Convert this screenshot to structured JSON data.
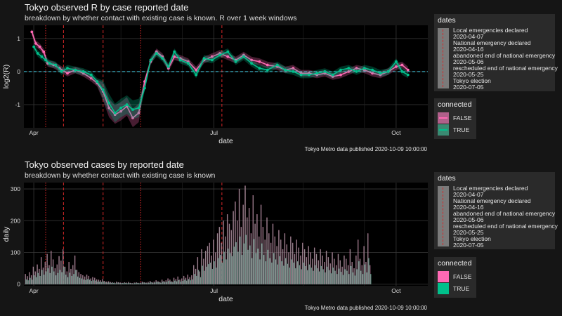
{
  "colors": {
    "false": "#ff69b4",
    "true": "#00c08b",
    "event_line": "#d62728",
    "hline": "#3fc0d6",
    "panel_bg": "#000000",
    "page_bg": "#151515"
  },
  "top": {
    "title": "Tokyo observed R by case reported date",
    "subtitle": "breakdown by whether contact with existing case is known. R over 1 week windows",
    "xlabel": "date",
    "ylabel": "log2(R)",
    "caption": "Tokyo Metro data published 2020-10-09 10:00:00"
  },
  "bottom": {
    "title": "Tokyo observed cases by reported date",
    "subtitle": "breakdown by whether contact with existing case is known",
    "xlabel": "date",
    "ylabel": "daily",
    "caption": "Tokyo Metro data published 2020-10-09 10:00:00"
  },
  "legend_dates": {
    "title": "dates",
    "entries": [
      "Local emergencies declared",
      "2020-04-07",
      "National emergency declared",
      "2020-04-16",
      "abandoned end of national emergency",
      "2020-05-06",
      "rescheduled end of national emergency",
      "2020-05-25",
      "Tokyo election",
      "2020-07-05"
    ]
  },
  "legend_connected": {
    "title": "connected",
    "items": [
      "FALSE",
      "TRUE"
    ]
  },
  "chart_data": [
    {
      "type": "line",
      "title": "Tokyo observed R by case reported date",
      "subtitle": "breakdown by whether contact with existing case is known. R over 1 week windows",
      "xlabel": "date",
      "ylabel": "log2(R)",
      "x_ticks": [
        "Apr",
        "Jul",
        "Oct"
      ],
      "y_ticks": [
        -1,
        0,
        1
      ],
      "ylim": [
        -1.7,
        1.4
      ],
      "x_range": [
        "2020-03-27",
        "2020-10-17"
      ],
      "hline": 0,
      "event_dates": [
        "2020-04-07",
        "2020-04-16",
        "2020-05-06",
        "2020-05-25",
        "2020-07-05"
      ],
      "series": [
        {
          "name": "FALSE",
          "points": [
            [
              "2020-03-31",
              1.2
            ],
            [
              "2020-04-02",
              0.85
            ],
            [
              "2020-04-04",
              0.75
            ],
            [
              "2020-04-06",
              0.6
            ],
            [
              "2020-04-08",
              0.25
            ],
            [
              "2020-04-11",
              0.2
            ],
            [
              "2020-04-14",
              0.1
            ],
            [
              "2020-04-18",
              -0.05
            ],
            [
              "2020-04-22",
              0.05
            ],
            [
              "2020-04-26",
              -0.05
            ],
            [
              "2020-04-30",
              -0.2
            ],
            [
              "2020-05-03",
              -0.35
            ],
            [
              "2020-05-06",
              -0.6
            ],
            [
              "2020-05-09",
              -1.1
            ],
            [
              "2020-05-12",
              -1.3
            ],
            [
              "2020-05-15",
              -1.2
            ],
            [
              "2020-05-18",
              -1.05
            ],
            [
              "2020-05-21",
              -1.4
            ],
            [
              "2020-05-24",
              -1.25
            ],
            [
              "2020-05-27",
              -0.3
            ],
            [
              "2020-05-30",
              0.3
            ],
            [
              "2020-06-02",
              0.6
            ],
            [
              "2020-06-05",
              0.45
            ],
            [
              "2020-06-08",
              0.1
            ],
            [
              "2020-06-11",
              0.45
            ],
            [
              "2020-06-14",
              0.4
            ],
            [
              "2020-06-18",
              0.3
            ],
            [
              "2020-06-22",
              0.05
            ],
            [
              "2020-06-26",
              0.35
            ],
            [
              "2020-06-30",
              0.45
            ],
            [
              "2020-07-04",
              0.55
            ],
            [
              "2020-07-08",
              0.45
            ],
            [
              "2020-07-12",
              0.35
            ],
            [
              "2020-07-16",
              0.5
            ],
            [
              "2020-07-20",
              0.35
            ],
            [
              "2020-07-24",
              0.3
            ],
            [
              "2020-07-28",
              0.2
            ],
            [
              "2020-08-02",
              0.15
            ],
            [
              "2020-08-06",
              0.05
            ],
            [
              "2020-08-10",
              0.1
            ],
            [
              "2020-08-14",
              -0.05
            ],
            [
              "2020-08-18",
              -0.05
            ],
            [
              "2020-08-22",
              -0.1
            ],
            [
              "2020-08-26",
              -0.05
            ],
            [
              "2020-08-30",
              -0.15
            ],
            [
              "2020-09-03",
              -0.1
            ],
            [
              "2020-09-07",
              0.0
            ],
            [
              "2020-09-11",
              0.1
            ],
            [
              "2020-09-15",
              0.05
            ],
            [
              "2020-09-19",
              -0.05
            ],
            [
              "2020-09-23",
              -0.1
            ],
            [
              "2020-09-27",
              0.0
            ],
            [
              "2020-10-01",
              0.15
            ],
            [
              "2020-10-04",
              0.2
            ],
            [
              "2020-10-07",
              0.05
            ]
          ]
        },
        {
          "name": "TRUE",
          "points": [
            [
              "2020-04-01",
              0.75
            ],
            [
              "2020-04-03",
              0.55
            ],
            [
              "2020-04-05",
              0.45
            ],
            [
              "2020-04-07",
              0.35
            ],
            [
              "2020-04-09",
              0.25
            ],
            [
              "2020-04-12",
              0.2
            ],
            [
              "2020-04-15",
              0.0
            ],
            [
              "2020-04-18",
              0.1
            ],
            [
              "2020-04-22",
              0.05
            ],
            [
              "2020-04-26",
              0.0
            ],
            [
              "2020-04-30",
              -0.1
            ],
            [
              "2020-05-03",
              -0.3
            ],
            [
              "2020-05-06",
              -0.55
            ],
            [
              "2020-05-09",
              -0.95
            ],
            [
              "2020-05-12",
              -1.25
            ],
            [
              "2020-05-15",
              -1.1
            ],
            [
              "2020-05-18",
              -1.0
            ],
            [
              "2020-05-21",
              -1.15
            ],
            [
              "2020-05-24",
              -1.1
            ],
            [
              "2020-05-27",
              -0.5
            ],
            [
              "2020-05-30",
              0.35
            ],
            [
              "2020-06-02",
              0.55
            ],
            [
              "2020-06-05",
              0.4
            ],
            [
              "2020-06-08",
              0.15
            ],
            [
              "2020-06-11",
              0.6
            ],
            [
              "2020-06-14",
              0.35
            ],
            [
              "2020-06-18",
              0.25
            ],
            [
              "2020-06-22",
              -0.1
            ],
            [
              "2020-06-26",
              0.4
            ],
            [
              "2020-06-30",
              0.35
            ],
            [
              "2020-07-04",
              0.5
            ],
            [
              "2020-07-08",
              0.6
            ],
            [
              "2020-07-12",
              0.3
            ],
            [
              "2020-07-16",
              0.45
            ],
            [
              "2020-07-20",
              0.25
            ],
            [
              "2020-07-24",
              0.1
            ],
            [
              "2020-07-28",
              0.05
            ],
            [
              "2020-08-02",
              0.2
            ],
            [
              "2020-08-06",
              0.05
            ],
            [
              "2020-08-10",
              0.0
            ],
            [
              "2020-08-14",
              -0.1
            ],
            [
              "2020-08-18",
              -0.1
            ],
            [
              "2020-08-22",
              -0.05
            ],
            [
              "2020-08-26",
              0.0
            ],
            [
              "2020-08-30",
              -0.1
            ],
            [
              "2020-09-03",
              0.05
            ],
            [
              "2020-09-07",
              0.1
            ],
            [
              "2020-09-11",
              0.0
            ],
            [
              "2020-09-15",
              0.1
            ],
            [
              "2020-09-19",
              0.05
            ],
            [
              "2020-09-23",
              -0.05
            ],
            [
              "2020-09-27",
              0.0
            ],
            [
              "2020-10-01",
              0.3
            ],
            [
              "2020-10-04",
              0.0
            ],
            [
              "2020-10-07",
              -0.1
            ]
          ]
        }
      ]
    },
    {
      "type": "bar",
      "title": "Tokyo observed cases by reported date",
      "subtitle": "breakdown by whether contact with existing case is known",
      "xlabel": "date",
      "ylabel": "daily",
      "x_ticks": [
        "Apr",
        "Jul",
        "Oct"
      ],
      "y_ticks": [
        0,
        100,
        200,
        300
      ],
      "ylim": [
        -5,
        320
      ],
      "x_range": [
        "2020-03-27",
        "2020-10-17"
      ],
      "event_dates": [
        "2020-04-07",
        "2020-04-16",
        "2020-05-06",
        "2020-05-25",
        "2020-07-05"
      ],
      "start_date": "2020-03-28",
      "series": [
        {
          "name": "FALSE",
          "values": [
            32,
            25,
            38,
            28,
            55,
            40,
            62,
            48,
            85,
            52,
            70,
            95,
            60,
            105,
            78,
            50,
            62,
            88,
            74,
            110,
            55,
            40,
            70,
            48,
            60,
            90,
            45,
            38,
            32,
            28,
            24,
            30,
            26,
            18,
            22,
            20,
            15,
            14,
            12,
            16,
            10,
            8,
            9,
            7,
            6,
            5,
            8,
            6,
            5,
            4,
            6,
            5,
            7,
            4,
            3,
            5,
            6,
            4,
            5,
            8,
            6,
            5,
            7,
            10,
            6,
            8,
            12,
            9,
            7,
            14,
            10,
            12,
            18,
            14,
            9,
            20,
            16,
            24,
            14,
            18,
            26,
            20,
            30,
            22,
            28,
            60,
            48,
            85,
            40,
            110,
            80,
            105,
            120,
            130,
            90,
            140,
            100,
            160,
            180,
            130,
            200,
            150,
            220,
            190,
            170,
            230,
            260,
            200,
            300,
            180,
            250,
            310,
            210,
            240,
            160,
            280,
            190,
            220,
            150,
            250,
            180,
            140,
            210,
            160,
            130,
            190,
            150,
            120,
            170,
            140,
            110,
            160,
            125,
            100,
            150,
            130,
            95,
            140,
            115,
            90,
            130,
            110,
            85,
            120,
            100,
            80,
            115,
            95,
            75,
            110,
            90,
            70,
            105,
            85,
            65,
            100,
            80,
            60,
            95,
            75,
            55,
            90,
            80,
            60,
            110,
            70,
            50,
            90,
            140,
            80,
            60,
            120,
            70,
            160,
            60
          ]
        },
        {
          "name": "TRUE",
          "values": [
            15,
            12,
            20,
            14,
            28,
            22,
            35,
            26,
            45,
            30,
            40,
            50,
            35,
            55,
            40,
            28,
            35,
            45,
            38,
            55,
            30,
            22,
            36,
            26,
            32,
            45,
            24,
            20,
            18,
            15,
            13,
            16,
            14,
            10,
            12,
            11,
            8,
            8,
            7,
            9,
            6,
            5,
            5,
            4,
            4,
            3,
            5,
            4,
            3,
            3,
            4,
            3,
            4,
            3,
            2,
            3,
            4,
            3,
            3,
            5,
            4,
            3,
            4,
            6,
            4,
            5,
            7,
            6,
            4,
            8,
            6,
            7,
            10,
            8,
            6,
            11,
            9,
            13,
            8,
            10,
            14,
            11,
            16,
            12,
            15,
            32,
            26,
            45,
            22,
            58,
            42,
            55,
            63,
            68,
            48,
            72,
            52,
            82,
            92,
            68,
            102,
            78,
            112,
            98,
            88,
            118,
            132,
            102,
            150,
            92,
            128,
            155,
            108,
            122,
            82,
            142,
            98,
            112,
            78,
            128,
            92,
            72,
            108,
            82,
            68,
            98,
            78,
            62,
            88,
            72,
            58,
            82,
            64,
            52,
            78,
            68,
            50,
            72,
            60,
            47,
            68,
            57,
            44,
            62,
            52,
            42,
            60,
            50,
            40,
            57,
            47,
            37,
            55,
            44,
            34,
            52,
            42,
            32,
            49,
            39,
            29,
            47,
            42,
            32,
            57,
            37,
            27,
            47,
            72,
            42,
            32,
            62,
            37,
            82,
            32
          ]
        }
      ]
    }
  ]
}
